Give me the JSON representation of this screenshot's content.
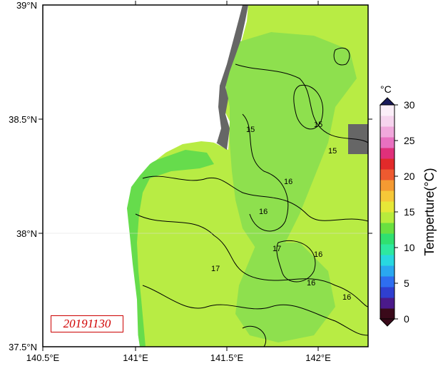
{
  "map": {
    "lon_ticks": [
      "140.5°E",
      "141°E",
      "141.5°E",
      "142°E"
    ],
    "lat_ticks": [
      "39°N",
      "38.5°N",
      "38°N",
      "37.5°N"
    ],
    "date_label": "20191130",
    "contour_labels": [
      "15",
      "15",
      "16",
      "16",
      "16",
      "17",
      "17",
      "16",
      "15",
      "16"
    ]
  },
  "colorbar": {
    "unit": "°C",
    "title": "Temperture(°C)",
    "ticks": [
      "0",
      "5",
      "10",
      "15",
      "20",
      "25",
      "30"
    ],
    "range": [
      0,
      30
    ],
    "colors": [
      "#3a0a1a",
      "#4b1a8a",
      "#2f3fd0",
      "#2e6ef0",
      "#2aa8f0",
      "#28d8e0",
      "#2ee8a0",
      "#30e070",
      "#6ae040",
      "#b8ec3c",
      "#e6e838",
      "#f6c838",
      "#f49a32",
      "#ee5a30",
      "#e22a2a",
      "#e0307a",
      "#e870c0",
      "#f0a8dc",
      "#f6d4ee",
      "#fbeef8"
    ]
  },
  "colors": {
    "land": "#666666",
    "sea_main": "#b8ec44",
    "sea_cool": "#8ee04e",
    "sea_cold": "#66dc4c",
    "frame": "#000000"
  }
}
